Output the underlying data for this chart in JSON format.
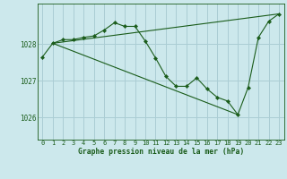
{
  "title": "Graphe pression niveau de la mer (hPa)",
  "background_color": "#cce8ec",
  "grid_color": "#aacdd4",
  "line_color": "#1a5c1a",
  "ylim": [
    1025.4,
    1029.1
  ],
  "yticks": [
    1026,
    1027,
    1028
  ],
  "xlim": [
    -0.5,
    23.5
  ],
  "xticks": [
    0,
    1,
    2,
    3,
    4,
    5,
    6,
    7,
    8,
    9,
    10,
    11,
    12,
    13,
    14,
    15,
    16,
    17,
    18,
    19,
    20,
    21,
    22,
    23
  ],
  "series": [
    {
      "x": [
        0,
        1,
        2,
        3,
        4,
        5,
        6,
        7,
        8,
        9,
        10,
        11,
        12,
        13,
        14,
        15,
        16,
        17,
        18,
        19,
        20,
        21,
        22,
        23
      ],
      "y": [
        1027.65,
        1028.02,
        1028.12,
        1028.12,
        1028.18,
        1028.22,
        1028.38,
        1028.58,
        1028.48,
        1028.48,
        1028.08,
        1027.62,
        1027.12,
        1026.85,
        1026.85,
        1027.08,
        1026.78,
        1026.55,
        1026.45,
        1026.08,
        1026.82,
        1028.18,
        1028.62,
        1028.82
      ]
    },
    {
      "x": [
        1,
        23
      ],
      "y": [
        1028.02,
        1028.82
      ]
    },
    {
      "x": [
        1,
        19
      ],
      "y": [
        1028.02,
        1026.08
      ]
    }
  ]
}
